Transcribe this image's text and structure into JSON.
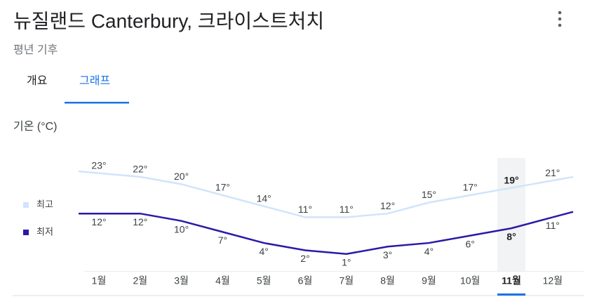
{
  "header": {
    "title": "뉴질랜드 Canterbury, 크라이스트처치",
    "subtitle": "평년 기후"
  },
  "tabs": [
    "개요",
    "그래프"
  ],
  "selected_tab": 1,
  "chart_data": {
    "type": "line",
    "axis_label": "기온 (°C)",
    "categories": [
      "1월",
      "2월",
      "3월",
      "4월",
      "5월",
      "6월",
      "7월",
      "8월",
      "9월",
      "10월",
      "11월",
      "12월"
    ],
    "selected_category": 10,
    "ylim": [
      0,
      30
    ],
    "legend": "left",
    "series": [
      {
        "name": "최고",
        "color": "#d2e3fc",
        "label_side": "above",
        "values": [
          23,
          22,
          20,
          17,
          14,
          11,
          11,
          12,
          15,
          17,
          19,
          21
        ],
        "value_labels": [
          "23°",
          "22°",
          "20°",
          "17°",
          "14°",
          "11°",
          "11°",
          "12°",
          "15°",
          "17°",
          "19°",
          "21°"
        ]
      },
      {
        "name": "최저",
        "color": "#2a1aa8",
        "label_side": "below",
        "values": [
          12,
          12,
          10,
          7,
          4,
          2,
          1,
          3,
          4,
          6,
          8,
          11
        ],
        "value_labels": [
          "12°",
          "12°",
          "10°",
          "7°",
          "4°",
          "2°",
          "1°",
          "3°",
          "4°",
          "6°",
          "8°",
          "11°"
        ]
      }
    ]
  }
}
